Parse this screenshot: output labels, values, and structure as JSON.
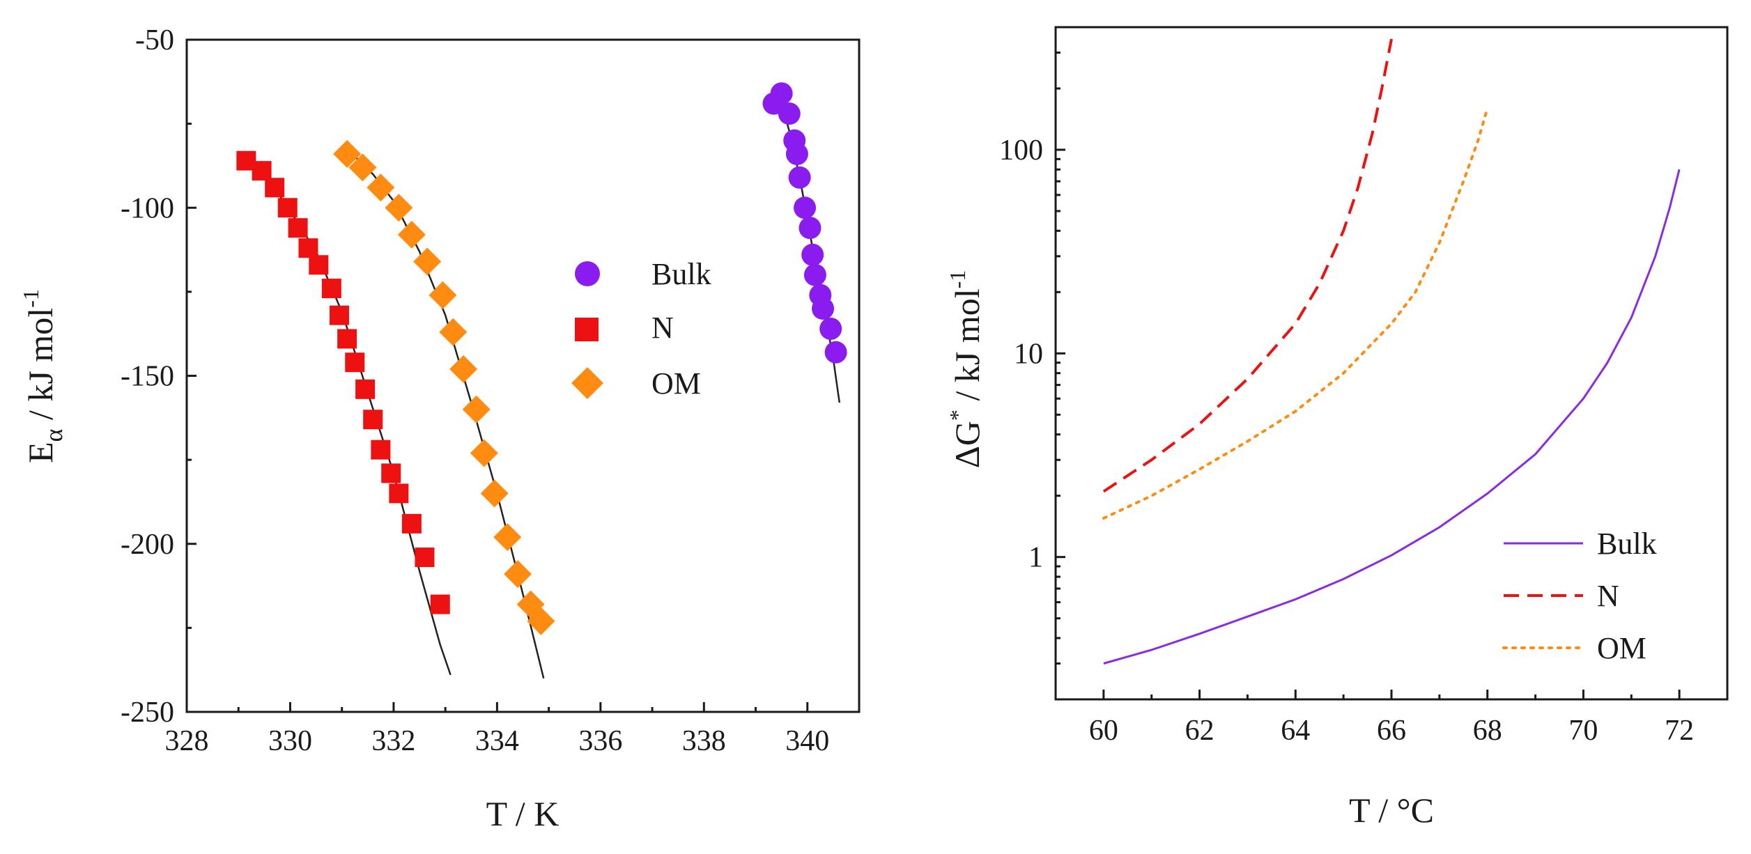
{
  "chart_data": [
    {
      "type": "scatter",
      "xlabel": "T / K",
      "ylabel_main": "E",
      "ylabel_sub": "α",
      "ylabel_unit": " / kJ mol",
      "ylabel_sup": "-1",
      "xlim": [
        328,
        341
      ],
      "ylim": [
        -250,
        -50
      ],
      "xticks": [
        328,
        330,
        332,
        334,
        336,
        338,
        340
      ],
      "xtick_labels": [
        "328",
        "330",
        "332",
        "334",
        "336",
        "338",
        "340"
      ],
      "yticks": [
        -250,
        -200,
        -150,
        -100,
        -50
      ],
      "ytick_labels": [
        "-250",
        "-200",
        "-150",
        "-100",
        "-50"
      ],
      "legend_position": "center-right",
      "series": [
        {
          "name": "Bulk",
          "marker": "circle",
          "color": "#8a1cf0",
          "x": [
            339.35,
            339.5,
            339.65,
            339.75,
            339.8,
            339.85,
            339.95,
            340.05,
            340.1,
            340.15,
            340.25,
            340.3,
            340.45,
            340.55
          ],
          "y": [
            -69,
            -66,
            -72,
            -80,
            -84,
            -91,
            -100,
            -106,
            -114,
            -120,
            -126,
            -130,
            -136,
            -143
          ],
          "fit_x": [
            339.45,
            339.7,
            339.9,
            340.1,
            340.3,
            340.5,
            340.62
          ],
          "fit_y": [
            -66,
            -80,
            -95,
            -112,
            -128,
            -145,
            -158
          ]
        },
        {
          "name": "N",
          "marker": "square",
          "color": "#ee1111",
          "x": [
            329.15,
            329.45,
            329.7,
            329.95,
            330.15,
            330.35,
            330.55,
            330.8,
            330.95,
            331.1,
            331.25,
            331.45,
            331.6,
            331.75,
            331.95,
            332.1,
            332.35,
            332.6,
            332.9
          ],
          "y": [
            -86,
            -89,
            -94,
            -100,
            -106,
            -112,
            -117,
            -124,
            -132,
            -139,
            -146,
            -154,
            -163,
            -172,
            -179,
            -185,
            -194,
            -204,
            -218
          ],
          "fit_x": [
            329.2,
            329.6,
            330.0,
            330.5,
            331.0,
            331.5,
            332.0,
            332.5,
            332.9,
            333.1
          ],
          "fit_y": [
            -86,
            -92,
            -101,
            -113,
            -131,
            -155,
            -179,
            -208,
            -230,
            -239
          ]
        },
        {
          "name": "OM",
          "marker": "diamond",
          "color": "#ff8c11",
          "x": [
            331.1,
            331.4,
            331.75,
            332.1,
            332.35,
            332.65,
            332.95,
            333.15,
            333.35,
            333.6,
            333.75,
            333.95,
            334.2,
            334.4,
            334.65,
            334.85
          ],
          "y": [
            -84,
            -88,
            -94,
            -100,
            -108,
            -116,
            -126,
            -137,
            -148,
            -160,
            -173,
            -185,
            -198,
            -209,
            -218,
            -223
          ],
          "fit_x": [
            331.2,
            331.6,
            332.0,
            332.5,
            333.0,
            333.5,
            334.0,
            334.5,
            334.9
          ],
          "fit_y": [
            -84,
            -90,
            -98,
            -113,
            -132,
            -158,
            -185,
            -215,
            -240
          ]
        }
      ]
    },
    {
      "type": "line",
      "xlabel": "T / °C",
      "ylabel_main": "ΔG",
      "ylabel_sup": "*",
      "ylabel_unit": " / kJ mol",
      "ylabel_sup2": "-1",
      "yscale": "log",
      "xlim": [
        59,
        73
      ],
      "ylim": [
        0.2,
        400
      ],
      "xticks": [
        60,
        62,
        64,
        66,
        68,
        70,
        72
      ],
      "xtick_labels": [
        "60",
        "62",
        "64",
        "66",
        "68",
        "70",
        "72"
      ],
      "yticks": [
        1,
        10,
        100
      ],
      "ytick_labels": [
        "1",
        "10",
        "100"
      ],
      "legend_position": "bottom-right",
      "series": [
        {
          "name": "Bulk",
          "style": "solid",
          "color": "#8a2be2",
          "x": [
            60,
            61,
            62,
            63,
            64,
            65,
            66,
            67,
            68,
            69,
            70,
            70.5,
            71,
            71.5,
            71.8,
            72
          ],
          "y": [
            0.3,
            0.35,
            0.42,
            0.51,
            0.62,
            0.78,
            1.02,
            1.4,
            2.05,
            3.2,
            6.0,
            9.0,
            15,
            30,
            52,
            80
          ]
        },
        {
          "name": "N",
          "style": "dashed",
          "color": "#ee1111",
          "x": [
            60,
            61,
            62,
            63,
            64,
            64.5,
            65,
            65.3,
            65.6,
            65.8,
            66
          ],
          "y": [
            2.1,
            3.0,
            4.5,
            7.5,
            14,
            22,
            40,
            65,
            120,
            200,
            350
          ]
        },
        {
          "name": "OM",
          "style": "dotted",
          "color": "#ff8c11",
          "x": [
            60,
            61,
            62,
            63,
            64,
            65,
            66,
            66.5,
            67,
            67.5,
            67.8,
            68
          ],
          "y": [
            1.55,
            2.0,
            2.7,
            3.7,
            5.2,
            8.0,
            14,
            20,
            35,
            70,
            110,
            160
          ]
        }
      ]
    }
  ]
}
